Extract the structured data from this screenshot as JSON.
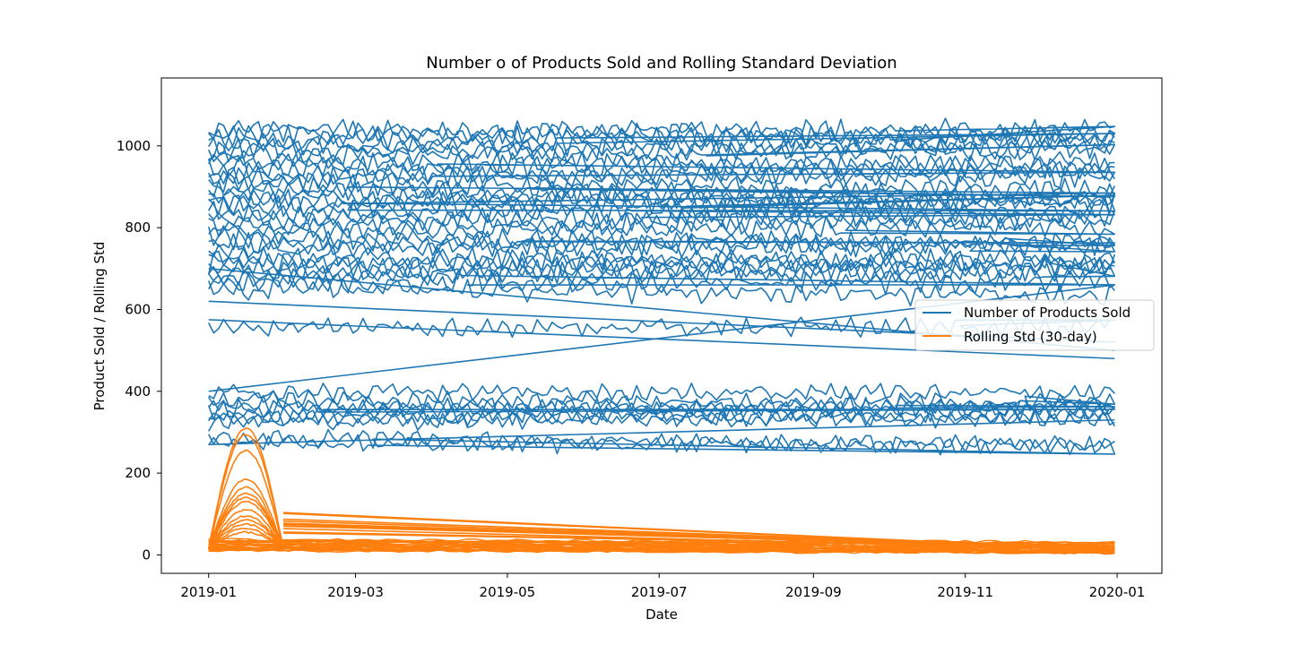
{
  "chart_data": {
    "type": "line",
    "title": "Number o of Products Sold and Rolling Standard Deviation",
    "xlabel": "Date",
    "ylabel": "Product Sold / Rolling Std",
    "xlim": [
      "2018-12-13",
      "2020-01-19"
    ],
    "ylim": [
      -45,
      1166
    ],
    "x_ticks": [
      "2019-01",
      "2019-03",
      "2019-05",
      "2019-07",
      "2019-09",
      "2019-11",
      "2020-01"
    ],
    "y_ticks": [
      0,
      200,
      400,
      600,
      800,
      1000
    ],
    "grid": false,
    "legend": {
      "position": "center-right",
      "entries": [
        "Number of Products Sold",
        "Rolling Std (30-day)"
      ]
    },
    "colors": {
      "sold": "#1f77b4",
      "std": "#ff7f0e"
    },
    "date_range": [
      "2019-01-01",
      "2019-12-31"
    ],
    "series": [
      {
        "name": "Number of Products Sold",
        "color": "#1f77b4",
        "product_base_levels": [
          1040,
          1030,
          1015,
          1000,
          990,
          975,
          960,
          945,
          930,
          920,
          905,
          890,
          880,
          865,
          850,
          835,
          820,
          805,
          790,
          775,
          760,
          745,
          730,
          715,
          700,
          690,
          680,
          665,
          650,
          555,
          400,
          380,
          365,
          355,
          345,
          335,
          325,
          285,
          275
        ],
        "approx_range": [
          240,
          1110
        ]
      },
      {
        "name": "Rolling Std (30-day)",
        "color": "#ff7f0e",
        "peak_values_january": [
          310,
          295,
          255,
          185,
          165,
          150,
          140,
          130,
          110,
          95,
          85,
          75,
          65,
          55
        ],
        "approx_level_after_january": [
          10,
          105
        ]
      }
    ]
  }
}
